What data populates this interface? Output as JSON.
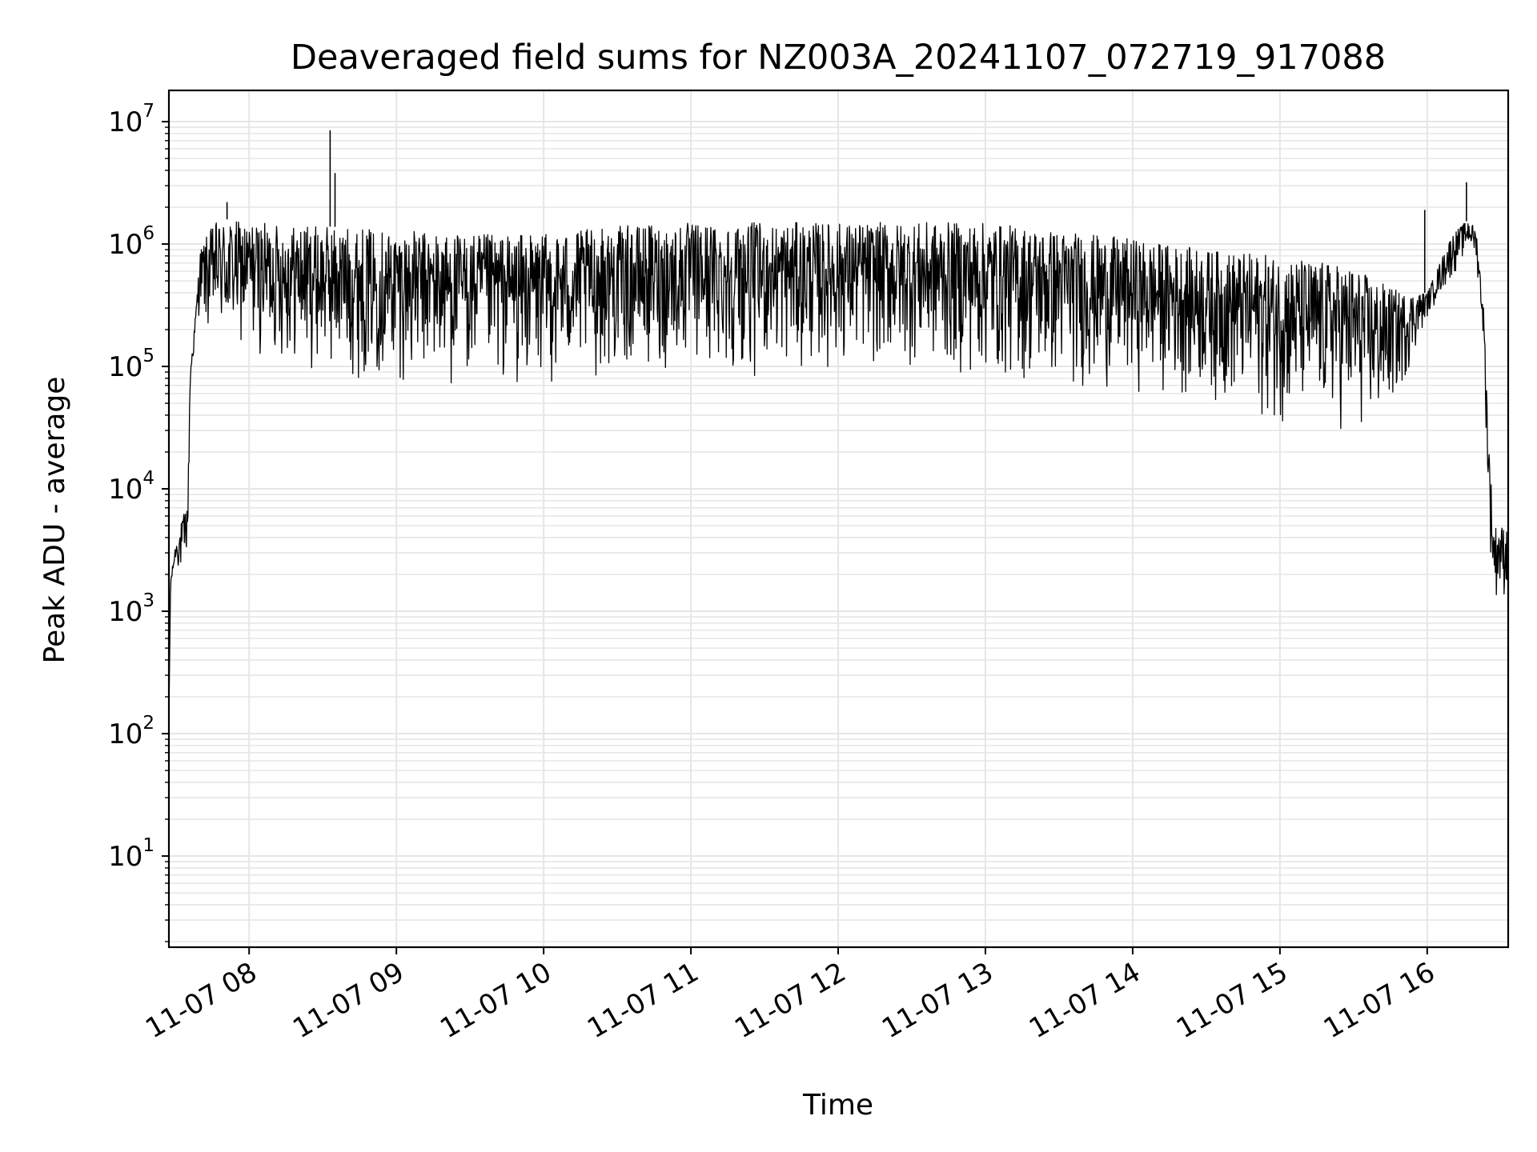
{
  "chart_data": {
    "type": "line",
    "title": "Deaveraged field sums for NZ003A_20241107_072719_917088",
    "xlabel": "Time",
    "ylabel": "Peak ADU - average",
    "yscale": "log",
    "ylim": [
      1.8,
      18000000
    ],
    "xlim": [
      "2024-11-07 07:27:19",
      "2024-11-07 16:33:00"
    ],
    "grid": true,
    "line_color": "#000000",
    "grid_color": "#e6e6e6",
    "x_ticks": [
      {
        "t": "2024-11-07 08:00",
        "label": "11-07 08"
      },
      {
        "t": "2024-11-07 09:00",
        "label": "11-07 09"
      },
      {
        "t": "2024-11-07 10:00",
        "label": "11-07 10"
      },
      {
        "t": "2024-11-07 11:00",
        "label": "11-07 11"
      },
      {
        "t": "2024-11-07 12:00",
        "label": "11-07 12"
      },
      {
        "t": "2024-11-07 13:00",
        "label": "11-07 13"
      },
      {
        "t": "2024-11-07 14:00",
        "label": "11-07 14"
      },
      {
        "t": "2024-11-07 15:00",
        "label": "11-07 15"
      },
      {
        "t": "2024-11-07 16:00",
        "label": "11-07 16"
      }
    ],
    "y_ticks": [
      {
        "value": 10,
        "base": "10",
        "exp": "1"
      },
      {
        "value": 100,
        "base": "10",
        "exp": "2"
      },
      {
        "value": 1000,
        "base": "10",
        "exp": "3"
      },
      {
        "value": 10000,
        "base": "10",
        "exp": "4"
      },
      {
        "value": 100000,
        "base": "10",
        "exp": "5"
      },
      {
        "value": 1000000,
        "base": "10",
        "exp": "6"
      },
      {
        "value": 10000000,
        "base": "10",
        "exp": "7"
      }
    ],
    "envelope": {
      "description_unused": "",
      "x": [
        "2024-11-07 07:27:19",
        "2024-11-07 07:28",
        "2024-11-07 07:30",
        "2024-11-07 07:33",
        "2024-11-07 07:35",
        "2024-11-07 07:36",
        "2024-11-07 07:38",
        "2024-11-07 07:40",
        "2024-11-07 07:43",
        "2024-11-07 07:46",
        "2024-11-07 07:50",
        "2024-11-07 08:00",
        "2024-11-07 08:30",
        "2024-11-07 09:00",
        "2024-11-07 09:30",
        "2024-11-07 10:00",
        "2024-11-07 10:30",
        "2024-11-07 11:00",
        "2024-11-07 11:30",
        "2024-11-07 12:00",
        "2024-11-07 12:30",
        "2024-11-07 13:00",
        "2024-11-07 13:30",
        "2024-11-07 14:00",
        "2024-11-07 14:30",
        "2024-11-07 15:00",
        "2024-11-07 15:20",
        "2024-11-07 15:30",
        "2024-11-07 15:40",
        "2024-11-07 15:50",
        "2024-11-07 16:00",
        "2024-11-07 16:10",
        "2024-11-07 16:17",
        "2024-11-07 16:20",
        "2024-11-07 16:23",
        "2024-11-07 16:25",
        "2024-11-07 16:27",
        "2024-11-07 16:30",
        "2024-11-07 16:33"
      ],
      "high": [
        150,
        1800,
        3500,
        6000,
        8000,
        100000,
        250000,
        900000,
        1200000,
        1500000,
        1600000,
        1500000,
        1400000,
        1300000,
        1200000,
        1200000,
        1400000,
        1500000,
        1500000,
        1500000,
        1500000,
        1500000,
        1300000,
        1100000,
        900000,
        800000,
        700000,
        650000,
        500000,
        400000,
        400000,
        1200000,
        1600000,
        1300000,
        300000,
        30000,
        5000,
        5000,
        5000
      ],
      "low": [
        150,
        1500,
        2500,
        1500,
        3000,
        60000,
        150000,
        300000,
        150000,
        150000,
        120000,
        120000,
        80000,
        70000,
        60000,
        60000,
        80000,
        80000,
        80000,
        90000,
        90000,
        70000,
        60000,
        60000,
        50000,
        30000,
        30000,
        23000,
        25000,
        60000,
        250000,
        500000,
        900000,
        700000,
        150000,
        5000,
        1200,
        1200,
        1200
      ]
    },
    "spikes": [
      {
        "t": "2024-11-07 08:33",
        "value": 8500000
      },
      {
        "t": "2024-11-07 08:35",
        "value": 3800000
      },
      {
        "t": "2024-11-07 07:51",
        "value": 2200000
      },
      {
        "t": "2024-11-07 16:16",
        "value": 3200000
      },
      {
        "t": "2024-11-07 15:59",
        "value": 1900000
      }
    ]
  }
}
